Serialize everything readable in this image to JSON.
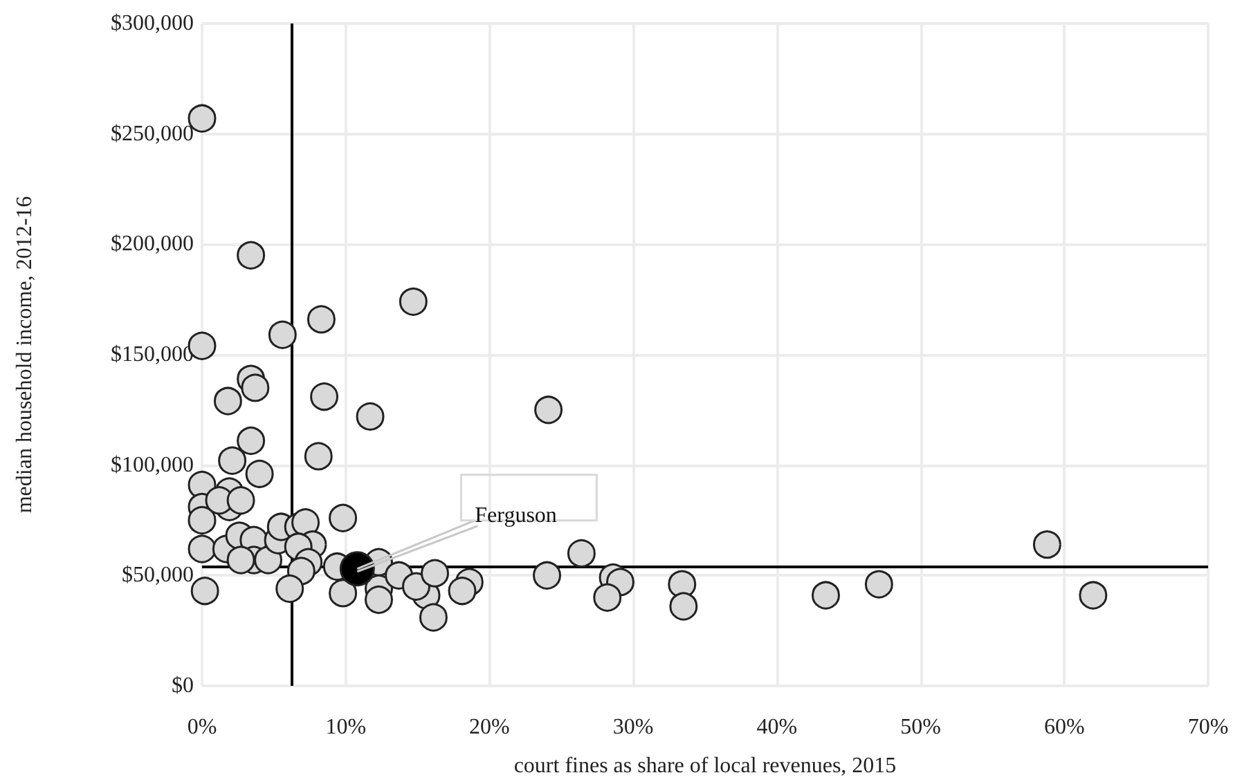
{
  "chart_data": {
    "type": "scatter",
    "xlabel": "court fines as share of local revenues, 2015",
    "ylabel": "median household income, 2012-16",
    "xlim": [
      0,
      70
    ],
    "xticks": [
      {
        "value": 0,
        "label": "0%"
      },
      {
        "value": 10,
        "label": "10%"
      },
      {
        "value": 20,
        "label": "20%"
      },
      {
        "value": 30,
        "label": "30%"
      },
      {
        "value": 40,
        "label": "40%"
      },
      {
        "value": 50,
        "label": "50%"
      },
      {
        "value": 60,
        "label": "60%"
      },
      {
        "value": 70,
        "label": "70%"
      }
    ],
    "ylim": [
      0,
      300000
    ],
    "yticks": [
      {
        "value": 0,
        "label": "$0"
      },
      {
        "value": 50000,
        "label": "$50,000"
      },
      {
        "value": 100000,
        "label": "$100,000"
      },
      {
        "value": 150000,
        "label": "$150,000"
      },
      {
        "value": 200000,
        "label": "$200,000"
      },
      {
        "value": 250000,
        "label": "$250,000"
      },
      {
        "value": 300000,
        "label": "$300,000"
      }
    ],
    "grid": true,
    "marker": "circle",
    "series": [
      {
        "color": "#d9d9d9",
        "x": [
          0,
          3.4,
          0,
          5.6,
          8.3,
          14.7,
          3.4,
          3.7,
          1.8,
          8.5,
          11.7,
          24.1,
          3.4,
          2.1,
          8.1,
          4.0,
          0,
          0,
          0,
          1.9,
          1.9,
          1.2,
          2.7,
          0,
          1.7,
          2.6,
          3.6,
          3.6,
          2.7,
          4.6,
          5.3,
          5.5,
          6.7,
          7.2,
          7.7,
          6.7,
          7.4,
          6.9,
          6.1,
          0.2,
          9.8,
          9.4,
          9.8,
          12.3,
          12.3,
          12.3,
          15.6,
          16.1,
          13.7,
          14.9,
          16.2,
          18.6,
          18.1,
          24.0,
          26.4,
          28.6,
          29.1,
          28.2,
          33.4,
          33.5,
          43.4,
          47.1,
          58.8,
          62.0
        ],
        "values": [
          257000,
          195000,
          154000,
          159000,
          166000,
          174000,
          139000,
          135000,
          129000,
          131000,
          122000,
          125000,
          111000,
          102000,
          104000,
          96000,
          91000,
          81000,
          75000,
          88000,
          81000,
          84000,
          84000,
          62000,
          62000,
          68000,
          66000,
          57000,
          57000,
          57000,
          66000,
          72000,
          72000,
          74000,
          64000,
          63000,
          56000,
          52000,
          44000,
          43000,
          76000,
          54000,
          42000,
          56000,
          44000,
          39000,
          41000,
          31000,
          50000,
          45000,
          51000,
          47000,
          43000,
          50000,
          60000,
          49000,
          47000,
          40000,
          46000,
          36000,
          41000,
          46000,
          64000,
          41000
        ]
      },
      {
        "color": "#000000",
        "x": [
          10.8
        ],
        "values": [
          53000
        ]
      }
    ],
    "ref_lines": [
      {
        "axis": "x",
        "value": 6.25,
        "color": "#000000"
      },
      {
        "axis": "y",
        "value": 54000,
        "color": "#000000"
      }
    ],
    "annotations": [
      {
        "text": "Ferguson",
        "x": 10.8,
        "y": 53000
      }
    ]
  }
}
